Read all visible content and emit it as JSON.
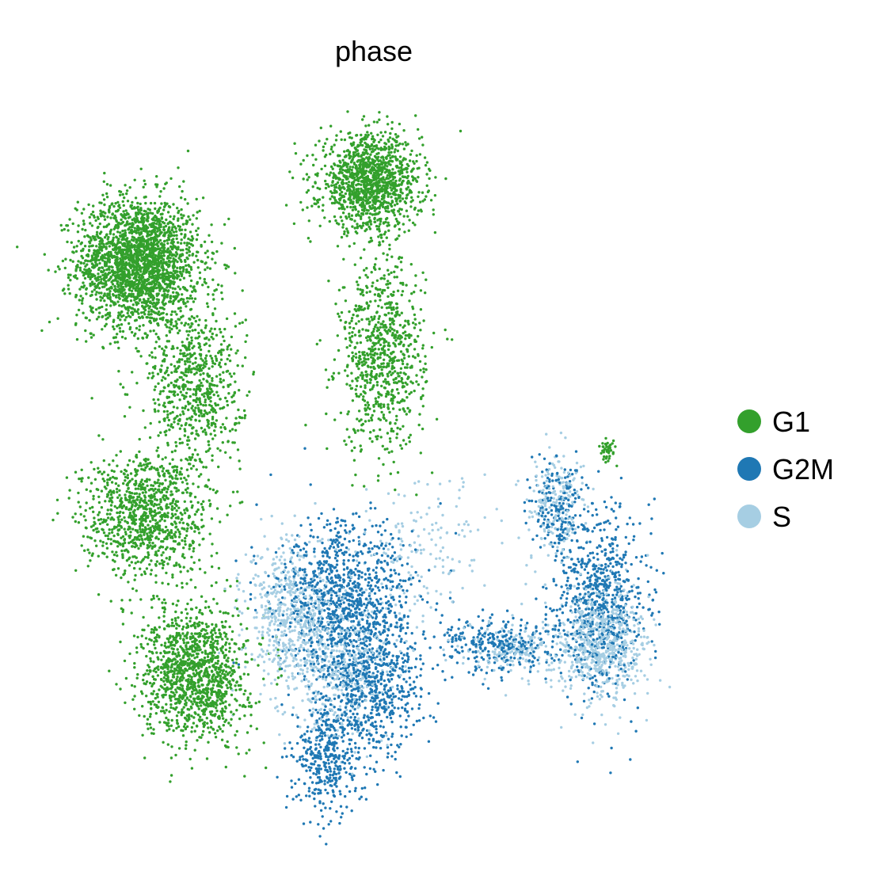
{
  "chart_data": {
    "type": "scatter",
    "title": "phase",
    "xlabel": "",
    "ylabel": "",
    "xlim": [
      0,
      100
    ],
    "ylim": [
      0,
      100
    ],
    "axes_visible": false,
    "grid": false,
    "legend_placement": "right",
    "series": [
      {
        "name": "G1",
        "color": "#33a02c",
        "clusters": [
          {
            "x": 12,
            "y": 79,
            "sx": 4.8,
            "sy": 4.5,
            "n": 2300
          },
          {
            "x": 49,
            "y": 90,
            "sx": 4.0,
            "sy": 3.3,
            "n": 1300
          },
          {
            "x": 51,
            "y": 66,
            "sx": 3.4,
            "sy": 6.5,
            "n": 800
          },
          {
            "x": 21,
            "y": 62,
            "sx": 3.8,
            "sy": 6.0,
            "n": 700
          },
          {
            "x": 13,
            "y": 44,
            "sx": 5.0,
            "sy": 4.3,
            "n": 1000
          },
          {
            "x": 21,
            "y": 22,
            "sx": 4.2,
            "sy": 4.6,
            "n": 1300
          },
          {
            "x": 87,
            "y": 53,
            "sx": 0.6,
            "sy": 0.9,
            "n": 40
          }
        ]
      },
      {
        "name": "G2M",
        "color": "#1f78b4",
        "clusters": [
          {
            "x": 45,
            "y": 32,
            "sx": 5.5,
            "sy": 5.5,
            "n": 1000
          },
          {
            "x": 49,
            "y": 20,
            "sx": 4.2,
            "sy": 5.0,
            "n": 700
          },
          {
            "x": 42,
            "y": 10,
            "sx": 2.5,
            "sy": 3.8,
            "n": 350
          },
          {
            "x": 70,
            "y": 26,
            "sx": 5.0,
            "sy": 2.0,
            "n": 300
          },
          {
            "x": 86,
            "y": 32,
            "sx": 3.5,
            "sy": 6.0,
            "n": 700
          },
          {
            "x": 79,
            "y": 45,
            "sx": 2.2,
            "sy": 3.5,
            "n": 200
          }
        ]
      },
      {
        "name": "S",
        "color": "#a6cee3",
        "clusters": [
          {
            "x": 36,
            "y": 30,
            "sx": 3.5,
            "sy": 5.0,
            "n": 500
          },
          {
            "x": 44,
            "y": 24,
            "sx": 4.5,
            "sy": 5.5,
            "n": 500
          },
          {
            "x": 86,
            "y": 26,
            "sx": 3.5,
            "sy": 4.0,
            "n": 700
          },
          {
            "x": 72,
            "y": 25,
            "sx": 4.5,
            "sy": 2.0,
            "n": 200
          },
          {
            "x": 79,
            "y": 45,
            "sx": 2.5,
            "sy": 3.5,
            "n": 200
          },
          {
            "x": 58,
            "y": 40,
            "sx": 5.0,
            "sy": 5.5,
            "n": 150
          }
        ]
      }
    ]
  }
}
